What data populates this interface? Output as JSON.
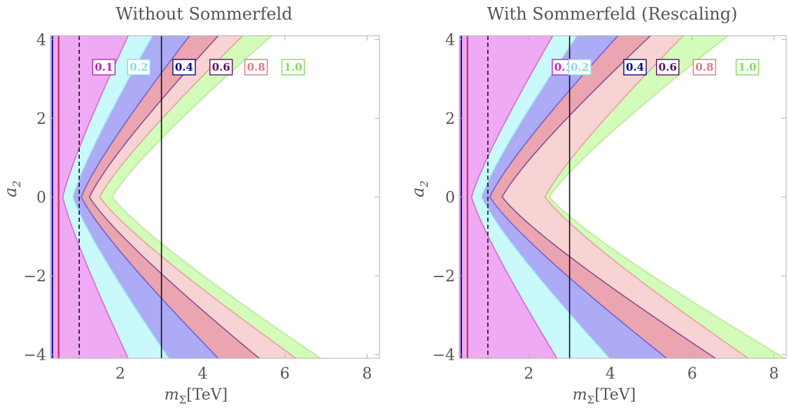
{
  "chart_data": [
    {
      "type": "area",
      "title": "Without Sommerfeld",
      "xlabel": "m_Σ[TeV]",
      "ylabel": "a_2",
      "xlim": [
        0.3,
        8.3
      ],
      "ylim": [
        -4.1,
        4.1
      ],
      "x_ticks": [
        2,
        4,
        6,
        8
      ],
      "y_ticks": [
        4,
        2,
        0,
        -2,
        -4
      ],
      "x_tick_labels": [
        "2",
        "4",
        "6",
        "8"
      ],
      "y_tick_labels": [
        "4",
        "2",
        "0",
        "−2",
        "−4"
      ],
      "grid": false,
      "legend": "top",
      "vertical_lines": [
        {
          "x": 0.35,
          "color": "#1a1aa0",
          "style": "solid"
        },
        {
          "x": 0.5,
          "color": "#cc2a6e",
          "style": "solid"
        },
        {
          "x": 1.0,
          "color": "#111111",
          "style": "dashed"
        },
        {
          "x": 3.0,
          "color": "#111111",
          "style": "solid"
        }
      ],
      "series": [
        {
          "name": "1.0",
          "fill": "#d3fbb9",
          "line": "#b6eb93",
          "x_at_a2_zero": 1.8,
          "x_at_a2_4": 5.7,
          "x_at_a2_minus4": 6.9
        },
        {
          "name": "0.8",
          "fill": "#f8d3d3",
          "line": "#e7a1a1",
          "x_at_a2_zero": 1.5,
          "x_at_a2_4": 5.0,
          "x_at_a2_minus4": 6.3
        },
        {
          "name": "0.6",
          "fill": "#eaa5b1",
          "line": "#8a4e8e",
          "x_at_a2_zero": 1.25,
          "x_at_a2_4": 4.4,
          "x_at_a2_minus4": 5.4
        },
        {
          "name": "0.4",
          "fill": "#adaaf6",
          "line": "#6f61d2",
          "x_at_a2_zero": 1.05,
          "x_at_a2_4": 3.7,
          "x_at_a2_minus4": 4.4
        },
        {
          "name": "0.2",
          "fill": "#c9f9fa",
          "line": "#96e0e6",
          "x_at_a2_zero": 0.85,
          "x_at_a2_4": 2.8,
          "x_at_a2_minus4": 3.2
        },
        {
          "name": "0.1",
          "fill": "#f0a9f3",
          "line": "#dc66d9",
          "x_at_a2_zero": 0.6,
          "x_at_a2_4": 2.2,
          "x_at_a2_minus4": 2.2
        }
      ],
      "labels": [
        {
          "text": "0.1",
          "x": 1.6,
          "y": 3.3,
          "color": "#c21fbf"
        },
        {
          "text": "0.2",
          "x": 2.45,
          "y": 3.3,
          "color": "#7fdee6"
        },
        {
          "text": "0.4",
          "x": 3.55,
          "y": 3.3,
          "color": "#06087f"
        },
        {
          "text": "0.6",
          "x": 4.45,
          "y": 3.3,
          "color": "#5a1261"
        },
        {
          "text": "0.8",
          "x": 5.3,
          "y": 3.3,
          "color": "#d97c83"
        },
        {
          "text": "1.0",
          "x": 6.2,
          "y": 3.3,
          "color": "#82dc5a"
        }
      ]
    },
    {
      "type": "area",
      "title": "With Sommerfeld (Rescaling)",
      "xlabel": "m_Σ[TeV]",
      "ylabel": "a_2",
      "xlim": [
        0.3,
        8.3
      ],
      "ylim": [
        -4.1,
        4.1
      ],
      "x_ticks": [
        2,
        4,
        6,
        8
      ],
      "y_ticks": [
        4,
        2,
        0,
        -2,
        -4
      ],
      "x_tick_labels": [
        "2",
        "4",
        "6",
        "8"
      ],
      "y_tick_labels": [
        "4",
        "2",
        "0",
        "−2",
        "−4"
      ],
      "grid": false,
      "legend": "top",
      "vertical_lines": [
        {
          "x": 0.35,
          "color": "#1a1aa0",
          "style": "solid"
        },
        {
          "x": 0.5,
          "color": "#cc2a6e",
          "style": "solid"
        },
        {
          "x": 1.0,
          "color": "#111111",
          "style": "dashed"
        },
        {
          "x": 3.0,
          "color": "#111111",
          "style": "solid"
        }
      ],
      "series": [
        {
          "name": "1.0",
          "fill": "#d3fbb9",
          "line": "#b6eb93",
          "x_at_a2_zero": 2.5,
          "x_at_a2_4": 6.9,
          "x_at_a2_minus4": 8.3
        },
        {
          "name": "0.8",
          "fill": "#f8d3d3",
          "line": "#e7a1a1",
          "x_at_a2_zero": 2.4,
          "x_at_a2_4": 5.8,
          "x_at_a2_minus4": 7.4
        },
        {
          "name": "0.6",
          "fill": "#eaa5b1",
          "line": "#8a4e8e",
          "x_at_a2_zero": 1.35,
          "x_at_a2_4": 5.0,
          "x_at_a2_minus4": 6.6
        },
        {
          "name": "0.4",
          "fill": "#adaaf6",
          "line": "#6f61d2",
          "x_at_a2_zero": 1.05,
          "x_at_a2_4": 4.2,
          "x_at_a2_minus4": 5.4
        },
        {
          "name": "0.2",
          "fill": "#c9f9fa",
          "line": "#96e0e6",
          "x_at_a2_zero": 0.85,
          "x_at_a2_4": 3.2,
          "x_at_a2_minus4": 4.0
        },
        {
          "name": "0.1",
          "fill": "#f0a9f3",
          "line": "#dc66d9",
          "x_at_a2_zero": 0.6,
          "x_at_a2_4": 2.6,
          "x_at_a2_minus4": 2.7
        }
      ],
      "labels": [
        {
          "text": "0.1",
          "x": 2.85,
          "y": 3.3,
          "color": "#c21fbf"
        },
        {
          "text": "0.2",
          "x": 3.25,
          "y": 3.3,
          "color": "#7fdee6"
        },
        {
          "text": "0.4",
          "x": 4.6,
          "y": 3.3,
          "color": "#06087f"
        },
        {
          "text": "0.6",
          "x": 5.4,
          "y": 3.3,
          "color": "#5a1261"
        },
        {
          "text": "0.8",
          "x": 6.3,
          "y": 3.3,
          "color": "#d97c83"
        },
        {
          "text": "1.0",
          "x": 7.35,
          "y": 3.3,
          "color": "#82dc5a"
        }
      ]
    }
  ]
}
